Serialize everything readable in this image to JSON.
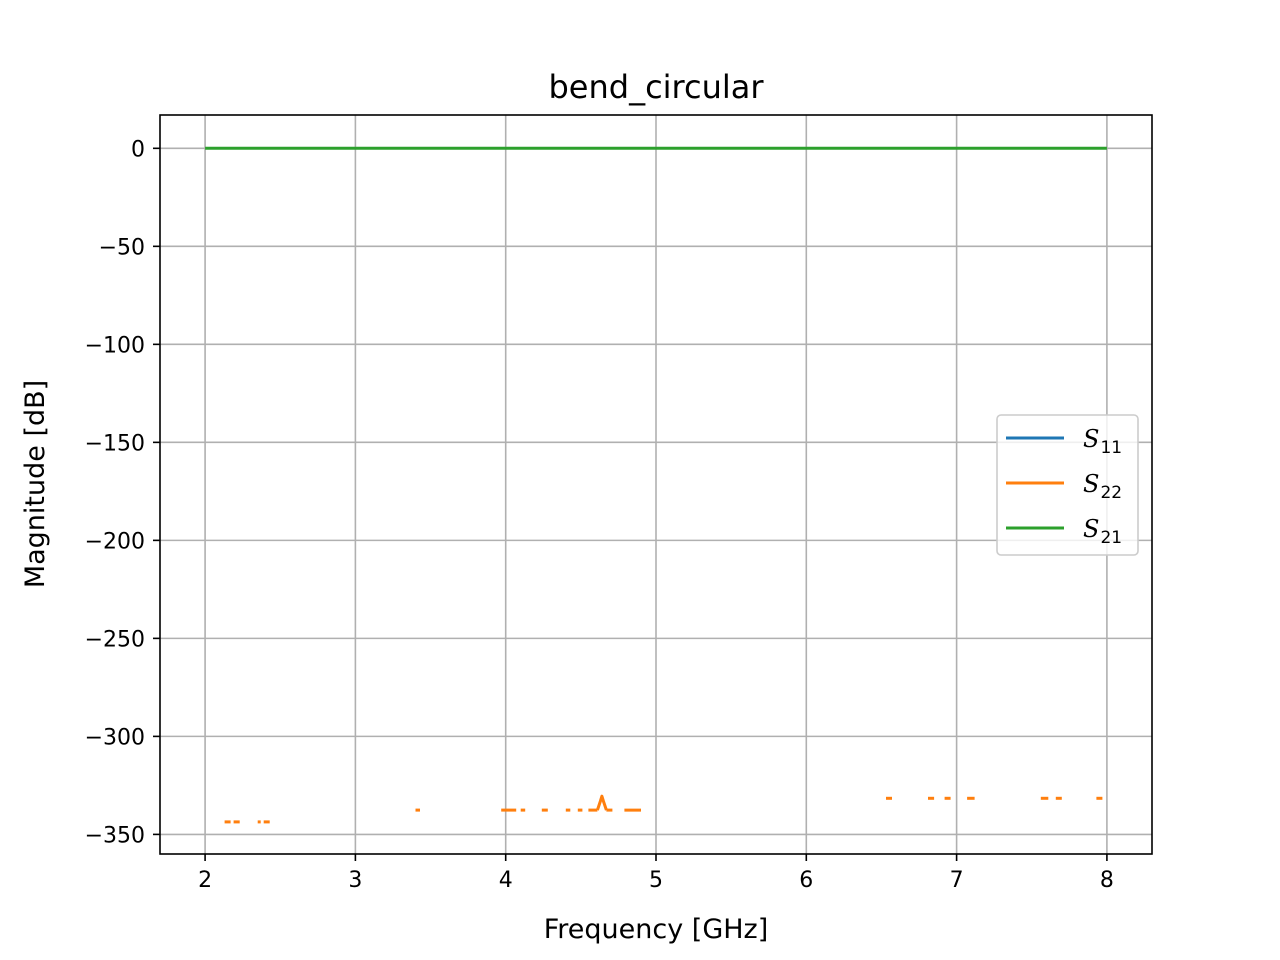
{
  "chart_data": {
    "type": "line",
    "title": "bend_circular",
    "xlabel": "Frequency [GHz]",
    "ylabel": "Magnitude [dB]",
    "xlim": [
      1.7,
      8.3
    ],
    "ylim": [
      -360,
      17
    ],
    "xticks": [
      2,
      3,
      4,
      5,
      6,
      7,
      8
    ],
    "yticks": [
      0,
      -50,
      -100,
      -150,
      -200,
      -250,
      -300,
      -350
    ],
    "xtick_labels": [
      "2",
      "3",
      "4",
      "5",
      "6",
      "7",
      "8"
    ],
    "ytick_labels": [
      "0",
      "−50",
      "−100",
      "−150",
      "−200",
      "−250",
      "−300",
      "−350"
    ],
    "grid": true,
    "legend_position": "center-right",
    "series": [
      {
        "name": "S11",
        "label_main": "S",
        "label_sub": "11",
        "color": "#1f77b4",
        "segments": []
      },
      {
        "name": "S22",
        "label_main": "S",
        "label_sub": "22",
        "color": "#ff7f0e",
        "segments": [
          [
            [
              2.13,
              -343.6
            ],
            [
              2.17,
              -343.6
            ]
          ],
          [
            [
              2.19,
              -343.6
            ],
            [
              2.23,
              -343.6
            ]
          ],
          [
            [
              2.35,
              -343.6
            ],
            [
              2.37,
              -343.6
            ]
          ],
          [
            [
              2.39,
              -343.6
            ],
            [
              2.43,
              -343.6
            ]
          ],
          [
            [
              3.4,
              -337.6
            ],
            [
              3.43,
              -337.6
            ]
          ],
          [
            [
              3.97,
              -337.6
            ],
            [
              4.07,
              -337.6
            ]
          ],
          [
            [
              4.1,
              -337.6
            ],
            [
              4.13,
              -337.6
            ]
          ],
          [
            [
              4.24,
              -337.6
            ],
            [
              4.28,
              -337.6
            ]
          ],
          [
            [
              4.4,
              -337.6
            ],
            [
              4.43,
              -337.6
            ]
          ],
          [
            [
              4.48,
              -337.6
            ],
            [
              4.51,
              -337.6
            ]
          ],
          [
            [
              4.55,
              -337.6
            ],
            [
              4.61,
              -337.6
            ]
          ],
          [
            [
              4.61,
              -337.6
            ],
            [
              4.63,
              -333.0
            ],
            [
              4.64,
              -330.5
            ],
            [
              4.65,
              -333.0
            ],
            [
              4.67,
              -337.6
            ]
          ],
          [
            [
              4.67,
              -337.6
            ],
            [
              4.71,
              -337.6
            ]
          ],
          [
            [
              4.79,
              -337.6
            ],
            [
              4.9,
              -337.6
            ]
          ],
          [
            [
              6.53,
              -331.6
            ],
            [
              6.57,
              -331.6
            ]
          ],
          [
            [
              6.81,
              -331.6
            ],
            [
              6.85,
              -331.6
            ]
          ],
          [
            [
              6.92,
              -331.6
            ],
            [
              6.96,
              -331.6
            ]
          ],
          [
            [
              7.07,
              -331.6
            ],
            [
              7.12,
              -331.6
            ]
          ],
          [
            [
              7.56,
              -331.6
            ],
            [
              7.61,
              -331.6
            ]
          ],
          [
            [
              7.66,
              -331.6
            ],
            [
              7.7,
              -331.6
            ]
          ],
          [
            [
              7.93,
              -331.6
            ],
            [
              7.97,
              -331.6
            ]
          ]
        ]
      },
      {
        "name": "S21",
        "label_main": "S",
        "label_sub": "21",
        "color": "#2ca02c",
        "segments": [
          [
            [
              2.0,
              0
            ],
            [
              8.0,
              0
            ]
          ]
        ]
      }
    ]
  }
}
